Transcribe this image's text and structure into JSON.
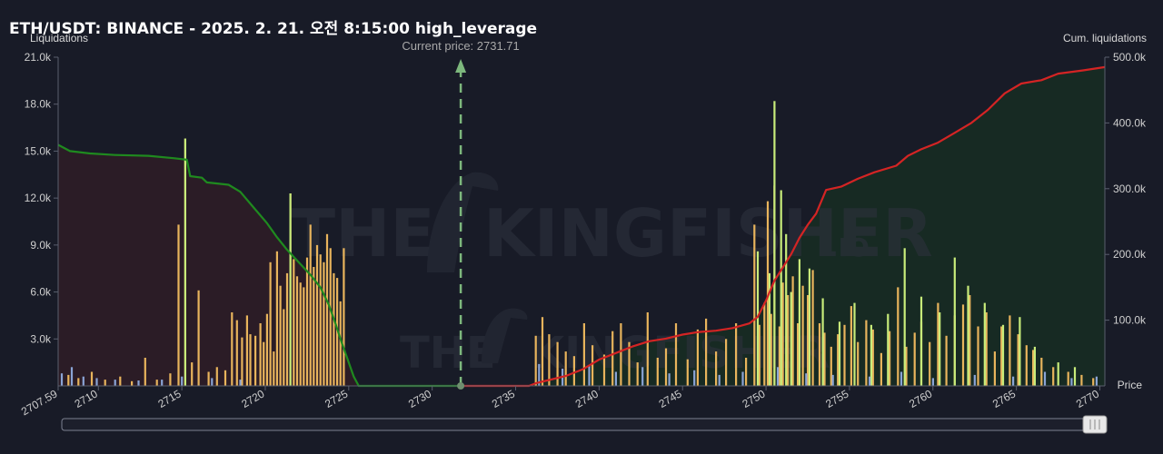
{
  "chart_data": {
    "type": "bar",
    "title": "ETH/USDT: BINANCE - 2025. 2. 21. 오전 8:15:00 high_leverage",
    "ylabel_left": "Liquidations",
    "ylabel_right": "Cum. liquidations",
    "xlabel": "Price",
    "xlim": [
      2707.59,
      2770.3
    ],
    "ylim_left": [
      0,
      21000
    ],
    "ylim_right": [
      0,
      500000
    ],
    "x_tick_labels": [
      "2707.59",
      "2710",
      "2715",
      "2720",
      "2725",
      "2730",
      "2735",
      "2740",
      "2745",
      "2750",
      "2755",
      "2760",
      "2765",
      "2770"
    ],
    "y_tick_labels_left": [
      "3.0k",
      "6.0k",
      "9.0k",
      "12.0k",
      "15.0k",
      "18.0k",
      "21.0k"
    ],
    "y_tick_labels_right": [
      "100.0k",
      "200.0k",
      "300.0k",
      "400.0k",
      "500.0k"
    ],
    "current_price": 2731.71,
    "current_price_label": "Current price: 2731.71",
    "grid": false,
    "series": [
      {
        "type": "bar",
        "color": "#e8b45c",
        "values": [
          [
            2708.2,
            700
          ],
          [
            2708.8,
            500
          ],
          [
            2709.6,
            900
          ],
          [
            2710.4,
            400
          ],
          [
            2711.3,
            600
          ],
          [
            2712.0,
            300
          ],
          [
            2712.8,
            1800
          ],
          [
            2713.5,
            400
          ],
          [
            2714.3,
            800
          ],
          [
            2714.8,
            10300
          ],
          [
            2715.2,
            15800
          ],
          [
            2715.6,
            1500
          ],
          [
            2716.0,
            6100
          ],
          [
            2716.6,
            900
          ],
          [
            2717.1,
            1200
          ],
          [
            2717.6,
            1000
          ],
          [
            2718.0,
            4700
          ],
          [
            2718.3,
            4200
          ],
          [
            2718.6,
            3100
          ],
          [
            2718.9,
            4500
          ],
          [
            2719.1,
            3300
          ],
          [
            2719.4,
            3200
          ],
          [
            2719.7,
            4000
          ],
          [
            2719.9,
            2800
          ],
          [
            2720.1,
            4600
          ],
          [
            2720.3,
            7900
          ],
          [
            2720.5,
            2200
          ],
          [
            2720.7,
            8600
          ],
          [
            2720.9,
            6400
          ],
          [
            2721.1,
            4900
          ],
          [
            2721.3,
            7200
          ],
          [
            2721.5,
            12300
          ],
          [
            2721.7,
            8100
          ],
          [
            2721.9,
            7000
          ],
          [
            2722.1,
            6600
          ],
          [
            2722.3,
            6300
          ],
          [
            2722.5,
            8200
          ],
          [
            2722.7,
            10300
          ],
          [
            2722.9,
            7600
          ],
          [
            2723.1,
            9000
          ],
          [
            2723.3,
            8400
          ],
          [
            2723.5,
            7900
          ],
          [
            2723.7,
            9700
          ],
          [
            2723.9,
            8800
          ],
          [
            2724.1,
            7200
          ],
          [
            2724.3,
            6900
          ],
          [
            2724.5,
            5400
          ],
          [
            2724.7,
            8800
          ],
          [
            2736.2,
            3200
          ],
          [
            2736.6,
            4400
          ],
          [
            2737.0,
            3300
          ],
          [
            2737.5,
            2800
          ],
          [
            2738.0,
            2200
          ],
          [
            2738.5,
            1900
          ],
          [
            2739.1,
            4000
          ],
          [
            2739.6,
            2600
          ],
          [
            2740.3,
            2000
          ],
          [
            2740.8,
            3500
          ],
          [
            2741.3,
            4000
          ],
          [
            2741.8,
            2800
          ],
          [
            2742.3,
            1500
          ],
          [
            2742.9,
            4700
          ],
          [
            2743.5,
            1800
          ],
          [
            2744.0,
            2400
          ],
          [
            2744.6,
            4000
          ],
          [
            2745.3,
            1700
          ],
          [
            2745.9,
            3600
          ],
          [
            2746.4,
            4300
          ],
          [
            2747.0,
            2200
          ],
          [
            2747.6,
            3000
          ],
          [
            2748.2,
            4000
          ],
          [
            2748.8,
            1800
          ],
          [
            2749.3,
            10300
          ],
          [
            2749.6,
            3900
          ],
          [
            2749.9,
            5300
          ],
          [
            2750.1,
            11800
          ],
          [
            2750.3,
            4600
          ],
          [
            2750.5,
            12800
          ],
          [
            2750.8,
            3800
          ],
          [
            2751.0,
            6600
          ],
          [
            2751.3,
            5800
          ],
          [
            2751.6,
            7000
          ],
          [
            2751.9,
            4000
          ],
          [
            2752.2,
            6400
          ],
          [
            2752.5,
            5800
          ],
          [
            2752.8,
            7400
          ],
          [
            2753.2,
            4000
          ],
          [
            2753.5,
            3400
          ],
          [
            2753.9,
            2500
          ],
          [
            2754.3,
            3300
          ],
          [
            2754.7,
            3900
          ],
          [
            2755.1,
            5100
          ],
          [
            2755.5,
            2800
          ],
          [
            2756.0,
            4200
          ],
          [
            2756.4,
            3600
          ],
          [
            2756.9,
            2100
          ],
          [
            2757.4,
            3500
          ],
          [
            2757.9,
            6300
          ],
          [
            2758.4,
            2500
          ],
          [
            2758.9,
            3400
          ],
          [
            2759.3,
            4100
          ],
          [
            2759.8,
            2800
          ],
          [
            2760.3,
            5300
          ],
          [
            2760.8,
            3200
          ],
          [
            2761.3,
            4500
          ],
          [
            2761.8,
            5200
          ],
          [
            2762.2,
            5800
          ],
          [
            2762.7,
            3800
          ],
          [
            2763.2,
            4700
          ],
          [
            2763.7,
            2200
          ],
          [
            2764.1,
            3800
          ],
          [
            2764.6,
            4500
          ],
          [
            2765.1,
            3300
          ],
          [
            2765.6,
            2600
          ],
          [
            2766.0,
            2300
          ],
          [
            2766.5,
            1800
          ],
          [
            2767.2,
            1200
          ],
          [
            2768.1,
            900
          ],
          [
            2768.9,
            700
          ],
          [
            2769.6,
            500
          ]
        ]
      },
      {
        "type": "bar",
        "color": "#c8ec7a",
        "values": [
          [
            2715.2,
            15800
          ],
          [
            2721.5,
            12300
          ],
          [
            2749.5,
            8600
          ],
          [
            2750.2,
            7200
          ],
          [
            2750.5,
            18200
          ],
          [
            2750.9,
            12500
          ],
          [
            2751.2,
            9700
          ],
          [
            2751.5,
            6000
          ],
          [
            2752.0,
            8100
          ],
          [
            2752.6,
            7500
          ],
          [
            2753.4,
            5600
          ],
          [
            2754.4,
            4100
          ],
          [
            2755.3,
            5300
          ],
          [
            2756.3,
            3900
          ],
          [
            2757.3,
            4600
          ],
          [
            2758.3,
            8800
          ],
          [
            2759.3,
            5700
          ],
          [
            2760.4,
            4700
          ],
          [
            2761.3,
            8200
          ],
          [
            2762.1,
            6400
          ],
          [
            2763.1,
            5300
          ],
          [
            2764.2,
            3900
          ],
          [
            2765.2,
            4400
          ],
          [
            2766.1,
            2500
          ],
          [
            2767.5,
            1500
          ],
          [
            2768.5,
            1200
          ]
        ]
      },
      {
        "type": "bar",
        "color": "#8aa4d6",
        "values": [
          [
            2707.8,
            800
          ],
          [
            2708.4,
            1200
          ],
          [
            2709.1,
            600
          ],
          [
            2709.9,
            500
          ],
          [
            2711.0,
            400
          ],
          [
            2712.4,
            350
          ],
          [
            2713.8,
            400
          ],
          [
            2715.0,
            600
          ],
          [
            2716.8,
            500
          ],
          [
            2718.5,
            400
          ],
          [
            2736.4,
            1400
          ],
          [
            2737.8,
            1100
          ],
          [
            2739.4,
            1300
          ],
          [
            2741.0,
            900
          ],
          [
            2742.6,
            1200
          ],
          [
            2744.2,
            800
          ],
          [
            2745.7,
            1000
          ],
          [
            2747.2,
            700
          ],
          [
            2748.6,
            900
          ],
          [
            2750.7,
            1200
          ],
          [
            2752.4,
            800
          ],
          [
            2754.0,
            700
          ],
          [
            2756.2,
            600
          ],
          [
            2758.1,
            900
          ],
          [
            2760.0,
            500
          ],
          [
            2762.5,
            700
          ],
          [
            2764.8,
            600
          ],
          [
            2766.7,
            900
          ],
          [
            2768.3,
            500
          ],
          [
            2769.8,
            600
          ]
        ]
      },
      {
        "type": "line",
        "axis": "left",
        "color": "#1f8a1f",
        "fill": "#2b1c26",
        "values": [
          [
            2707.59,
            15400
          ],
          [
            2708.3,
            15000
          ],
          [
            2709.5,
            14850
          ],
          [
            2711.0,
            14750
          ],
          [
            2713.0,
            14700
          ],
          [
            2714.5,
            14550
          ],
          [
            2715.3,
            14450
          ],
          [
            2715.5,
            13400
          ],
          [
            2716.2,
            13300
          ],
          [
            2716.5,
            13000
          ],
          [
            2717.8,
            12850
          ],
          [
            2718.5,
            12400
          ],
          [
            2719.3,
            11400
          ],
          [
            2720.1,
            10400
          ],
          [
            2720.7,
            9500
          ],
          [
            2721.3,
            8700
          ],
          [
            2722.0,
            7900
          ],
          [
            2722.7,
            7100
          ],
          [
            2723.3,
            6300
          ],
          [
            2723.8,
            5200
          ],
          [
            2724.2,
            4000
          ],
          [
            2724.6,
            2700
          ],
          [
            2725.0,
            1500
          ],
          [
            2725.3,
            600
          ],
          [
            2725.6,
            0
          ],
          [
            2731.71,
            0
          ]
        ]
      },
      {
        "type": "line",
        "axis": "right",
        "color": "#d42424",
        "fill": "#172a23",
        "values": [
          [
            2731.71,
            0
          ],
          [
            2735.8,
            0
          ],
          [
            2736.2,
            4000
          ],
          [
            2737.0,
            9000
          ],
          [
            2738.0,
            15000
          ],
          [
            2739.0,
            25000
          ],
          [
            2740.0,
            40000
          ],
          [
            2741.0,
            50000
          ],
          [
            2742.0,
            60000
          ],
          [
            2743.0,
            68000
          ],
          [
            2744.0,
            72000
          ],
          [
            2745.0,
            78000
          ],
          [
            2746.0,
            82000
          ],
          [
            2747.0,
            84000
          ],
          [
            2748.0,
            88000
          ],
          [
            2749.0,
            95000
          ],
          [
            2749.5,
            105000
          ],
          [
            2750.0,
            130000
          ],
          [
            2750.5,
            160000
          ],
          [
            2751.0,
            180000
          ],
          [
            2751.5,
            200000
          ],
          [
            2752.0,
            225000
          ],
          [
            2752.5,
            245000
          ],
          [
            2753.0,
            262000
          ],
          [
            2753.6,
            298000
          ],
          [
            2754.5,
            303000
          ],
          [
            2755.5,
            315000
          ],
          [
            2756.5,
            325000
          ],
          [
            2757.8,
            335000
          ],
          [
            2758.5,
            350000
          ],
          [
            2759.3,
            360000
          ],
          [
            2760.3,
            370000
          ],
          [
            2761.3,
            385000
          ],
          [
            2762.3,
            400000
          ],
          [
            2763.3,
            420000
          ],
          [
            2764.3,
            445000
          ],
          [
            2765.3,
            460000
          ],
          [
            2766.5,
            465000
          ],
          [
            2767.5,
            475000
          ],
          [
            2769.0,
            480000
          ],
          [
            2770.3,
            485000
          ]
        ]
      }
    ]
  },
  "watermark": {
    "word1": "THE",
    "word2": "KINGFISHER",
    "suffix": ".IO"
  }
}
